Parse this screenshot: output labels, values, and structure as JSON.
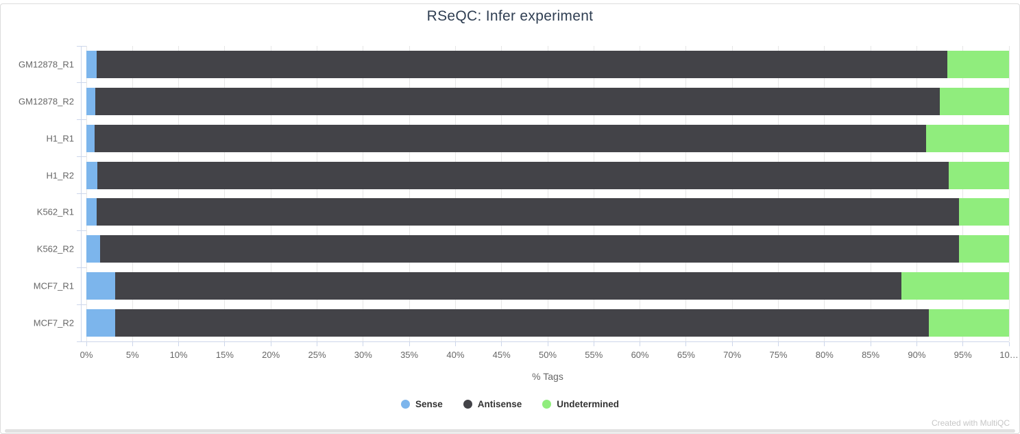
{
  "title": "RSeQC: Infer experiment",
  "footer": {
    "credits": "Created with MultiQC"
  },
  "chart_data": {
    "type": "bar",
    "orientation": "horizontal",
    "stacked": true,
    "title": "RSeQC: Infer experiment",
    "xlabel": "% Tags",
    "ylabel": "",
    "xlim": [
      0,
      100
    ],
    "grid": true,
    "legend_position": "bottom",
    "categories": [
      "GM12878_R1",
      "GM12878_R2",
      "H1_R1",
      "H1_R2",
      "K562_R1",
      "K562_R2",
      "MCF7_R1",
      "MCF7_R2"
    ],
    "series": [
      {
        "name": "Sense",
        "color": "#7cb5ec",
        "values": [
          1.1,
          1.0,
          0.9,
          1.2,
          1.1,
          1.5,
          3.1,
          3.1
        ]
      },
      {
        "name": "Antisense",
        "color": "#434348",
        "values": [
          92.2,
          91.5,
          90.1,
          92.3,
          93.5,
          93.1,
          85.2,
          88.2
        ]
      },
      {
        "name": "Undetermined",
        "color": "#90ed7d",
        "values": [
          6.7,
          7.5,
          9.0,
          6.5,
          5.4,
          5.4,
          11.7,
          8.7
        ]
      }
    ],
    "x_ticks": [
      "0%",
      "5%",
      "10%",
      "15%",
      "20%",
      "25%",
      "30%",
      "35%",
      "40%",
      "45%",
      "50%",
      "55%",
      "60%",
      "65%",
      "70%",
      "75%",
      "80%",
      "85%",
      "90%",
      "95%",
      "10…"
    ],
    "x_tick_step_pct": 5
  },
  "colors": {
    "title_text": "#2f3e52",
    "axis_text": "#666666",
    "legend_text": "#333333",
    "gridline": "#e6e6e6",
    "axis_line": "#ccd6eb",
    "credits_text": "#c6c6c6",
    "card_border": "#dcdcdc",
    "scrollbar": "#e1e1e1"
  }
}
